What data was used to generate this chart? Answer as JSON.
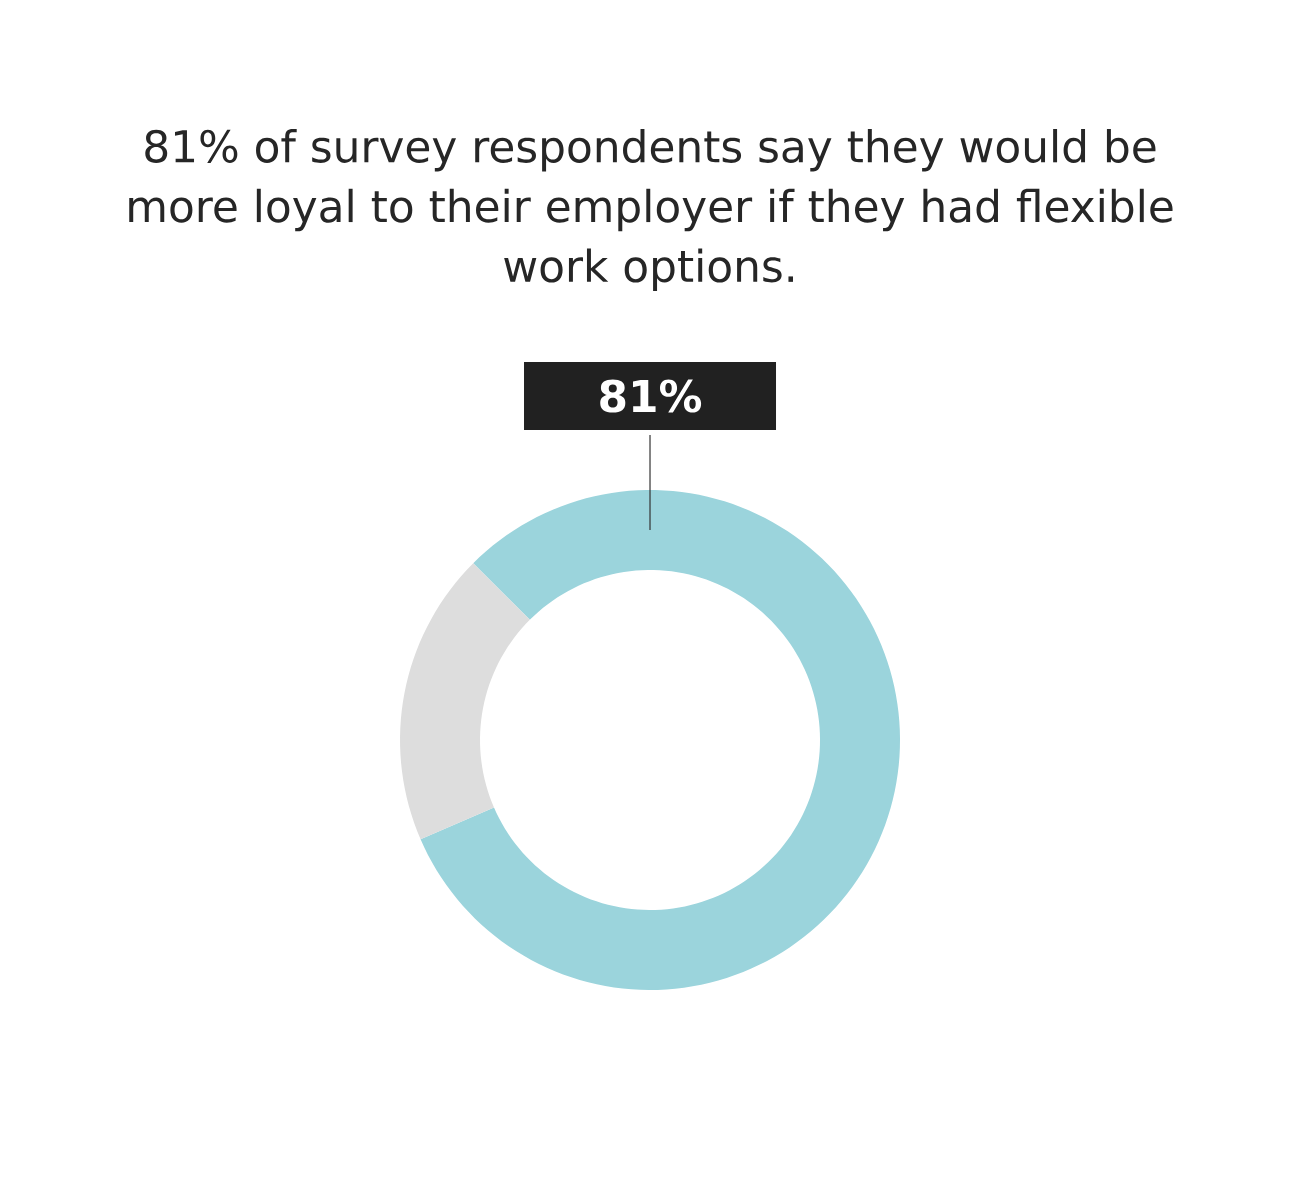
{
  "chart_data": {
    "type": "donut",
    "title": "81% of survey respondents say they would be more loyal to their employer if they had flexible work options.",
    "categories": [
      null,
      null
    ],
    "values": [
      81,
      19
    ],
    "colors": [
      "#9bd4dc",
      "#dddddd"
    ],
    "value_labels": [
      "81%",
      null
    ]
  }
}
